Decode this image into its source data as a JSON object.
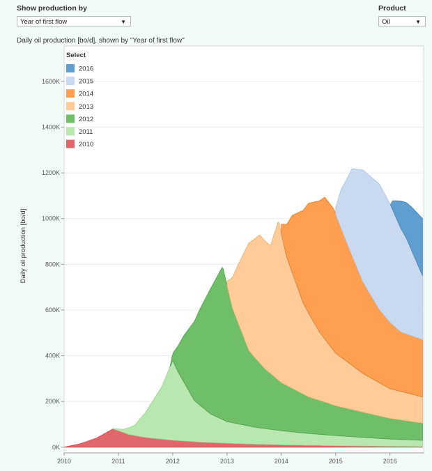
{
  "controls": {
    "show_by_label": "Show production by",
    "show_by_value": "Year of first flow",
    "product_label": "Product",
    "product_value": "Oil"
  },
  "chart_data": {
    "type": "area",
    "title": "Daily oil production [bo/d], shown by \"Year of first flow\"",
    "xlabel": "",
    "ylabel": "Daily oil production [bo/d]",
    "xlim": [
      2010,
      2016.62
    ],
    "ylim": [
      -25000,
      1755000
    ],
    "x_ticks": [
      {
        "label": "2010",
        "value": 2010
      },
      {
        "label": "2011",
        "value": 2011
      },
      {
        "label": "2012",
        "value": 2012
      },
      {
        "label": "2013",
        "value": 2013
      },
      {
        "label": "2014",
        "value": 2014
      },
      {
        "label": "2015",
        "value": 2015
      },
      {
        "label": "2016",
        "value": 2016
      }
    ],
    "y_ticks": [
      {
        "label": "0K",
        "value": 0
      },
      {
        "label": "200K",
        "value": 200000
      },
      {
        "label": "400K",
        "value": 400000
      },
      {
        "label": "600K",
        "value": 600000
      },
      {
        "label": "800K",
        "value": 800000
      },
      {
        "label": "1000K",
        "value": 1000000
      },
      {
        "label": "1200K",
        "value": 1200000
      },
      {
        "label": "1400K",
        "value": 1400000
      },
      {
        "label": "1600K",
        "value": 1600000
      }
    ],
    "legend": {
      "title": "Select",
      "placement": "top-left",
      "entries": [
        {
          "label": "2016",
          "color": "#5f9ed1"
        },
        {
          "label": "2015",
          "color": "#c8d9f0"
        },
        {
          "label": "2014",
          "color": "#ff9f4f"
        },
        {
          "label": "2013",
          "color": "#ffcc99"
        },
        {
          "label": "2012",
          "color": "#6fbf6a"
        },
        {
          "label": "2011",
          "color": "#b8e8b0"
        },
        {
          "label": "2010",
          "color": "#e0686c"
        }
      ]
    },
    "series": [
      {
        "name": "2010",
        "color": "#e0686c",
        "stroke": "#c9474c",
        "start": 2010,
        "points": [
          [
            2010,
            0
          ],
          [
            2010.3,
            15000
          ],
          [
            2010.6,
            40000
          ],
          [
            2010.9,
            80000
          ],
          [
            2011.2,
            55000
          ],
          [
            2011.5,
            42000
          ],
          [
            2012,
            30000
          ],
          [
            2012.5,
            22000
          ],
          [
            2013,
            17000
          ],
          [
            2013.5,
            13000
          ],
          [
            2014,
            10000
          ],
          [
            2015,
            6000
          ],
          [
            2016,
            3500
          ],
          [
            2016.6,
            2000
          ]
        ]
      },
      {
        "name": "2011",
        "color": "#b8e8b0",
        "stroke": "#8fd187",
        "start": 2010.9,
        "points": [
          [
            2010.9,
            0
          ],
          [
            2011.1,
            15000
          ],
          [
            2011.3,
            45000
          ],
          [
            2011.5,
            110000
          ],
          [
            2011.8,
            230000
          ],
          [
            2012,
            350000
          ],
          [
            2012.1,
            300000
          ],
          [
            2012.4,
            180000
          ],
          [
            2012.7,
            125000
          ],
          [
            2013,
            95000
          ],
          [
            2013.5,
            75000
          ],
          [
            2014,
            62000
          ],
          [
            2014.5,
            52000
          ],
          [
            2015,
            45000
          ],
          [
            2015.5,
            38000
          ],
          [
            2016,
            32000
          ],
          [
            2016.6,
            28000
          ]
        ]
      },
      {
        "name": "2012",
        "color": "#6fbf6a",
        "stroke": "#4c9e4a",
        "start": 2011.95,
        "points": [
          [
            2011.95,
            0
          ],
          [
            2012,
            30000
          ],
          [
            2012.2,
            200000
          ],
          [
            2012.5,
            420000
          ],
          [
            2012.7,
            550000
          ],
          [
            2012.92,
            670000
          ],
          [
            2013.1,
            500000
          ],
          [
            2013.4,
            330000
          ],
          [
            2013.7,
            260000
          ],
          [
            2014,
            210000
          ],
          [
            2014.5,
            160000
          ],
          [
            2015,
            130000
          ],
          [
            2015.5,
            110000
          ],
          [
            2016,
            90000
          ],
          [
            2016.6,
            75000
          ]
        ]
      },
      {
        "name": "2013",
        "color": "#ffcc99",
        "stroke": "#f0a868",
        "start": 2013,
        "points": [
          [
            2013,
            0
          ],
          [
            2013,
            20000
          ],
          [
            2013.2,
            250000
          ],
          [
            2013.4,
            470000
          ],
          [
            2013.6,
            560000
          ],
          [
            2013.8,
            560000
          ],
          [
            2013.95,
            700000
          ],
          [
            2014.1,
            560000
          ],
          [
            2014.4,
            400000
          ],
          [
            2014.7,
            300000
          ],
          [
            2015,
            230000
          ],
          [
            2015.5,
            170000
          ],
          [
            2016,
            130000
          ],
          [
            2016.6,
            115000
          ]
        ]
      },
      {
        "name": "2014",
        "color": "#ff9f4f",
        "stroke": "#e07b28",
        "start": 2014,
        "points": [
          [
            2014,
            0
          ],
          [
            2014,
            40000
          ],
          [
            2014.2,
            250000
          ],
          [
            2014.5,
            480000
          ],
          [
            2014.8,
            620000
          ],
          [
            2014.97,
            620000
          ],
          [
            2015.2,
            520000
          ],
          [
            2015.5,
            400000
          ],
          [
            2015.8,
            320000
          ],
          [
            2016.2,
            260000
          ],
          [
            2016.6,
            250000
          ]
        ]
      },
      {
        "name": "2015",
        "color": "#c8d9f0",
        "stroke": "#a9c2e3",
        "start": 2015,
        "points": [
          [
            2015,
            0
          ],
          [
            2015,
            30000
          ],
          [
            2015.1,
            170000
          ],
          [
            2015.3,
            380000
          ],
          [
            2015.5,
            490000
          ],
          [
            2015.8,
            550000
          ],
          [
            2016,
            520000
          ],
          [
            2016.3,
            420000
          ],
          [
            2016.6,
            280000
          ]
        ]
      },
      {
        "name": "2016",
        "color": "#5f9ed1",
        "stroke": "#3f7fb4",
        "start": 2016.01,
        "points": [
          [
            2016.01,
            0
          ],
          [
            2016.05,
            40000
          ],
          [
            2016.2,
            120000
          ],
          [
            2016.4,
            190000
          ],
          [
            2016.6,
            250000
          ]
        ]
      }
    ]
  }
}
